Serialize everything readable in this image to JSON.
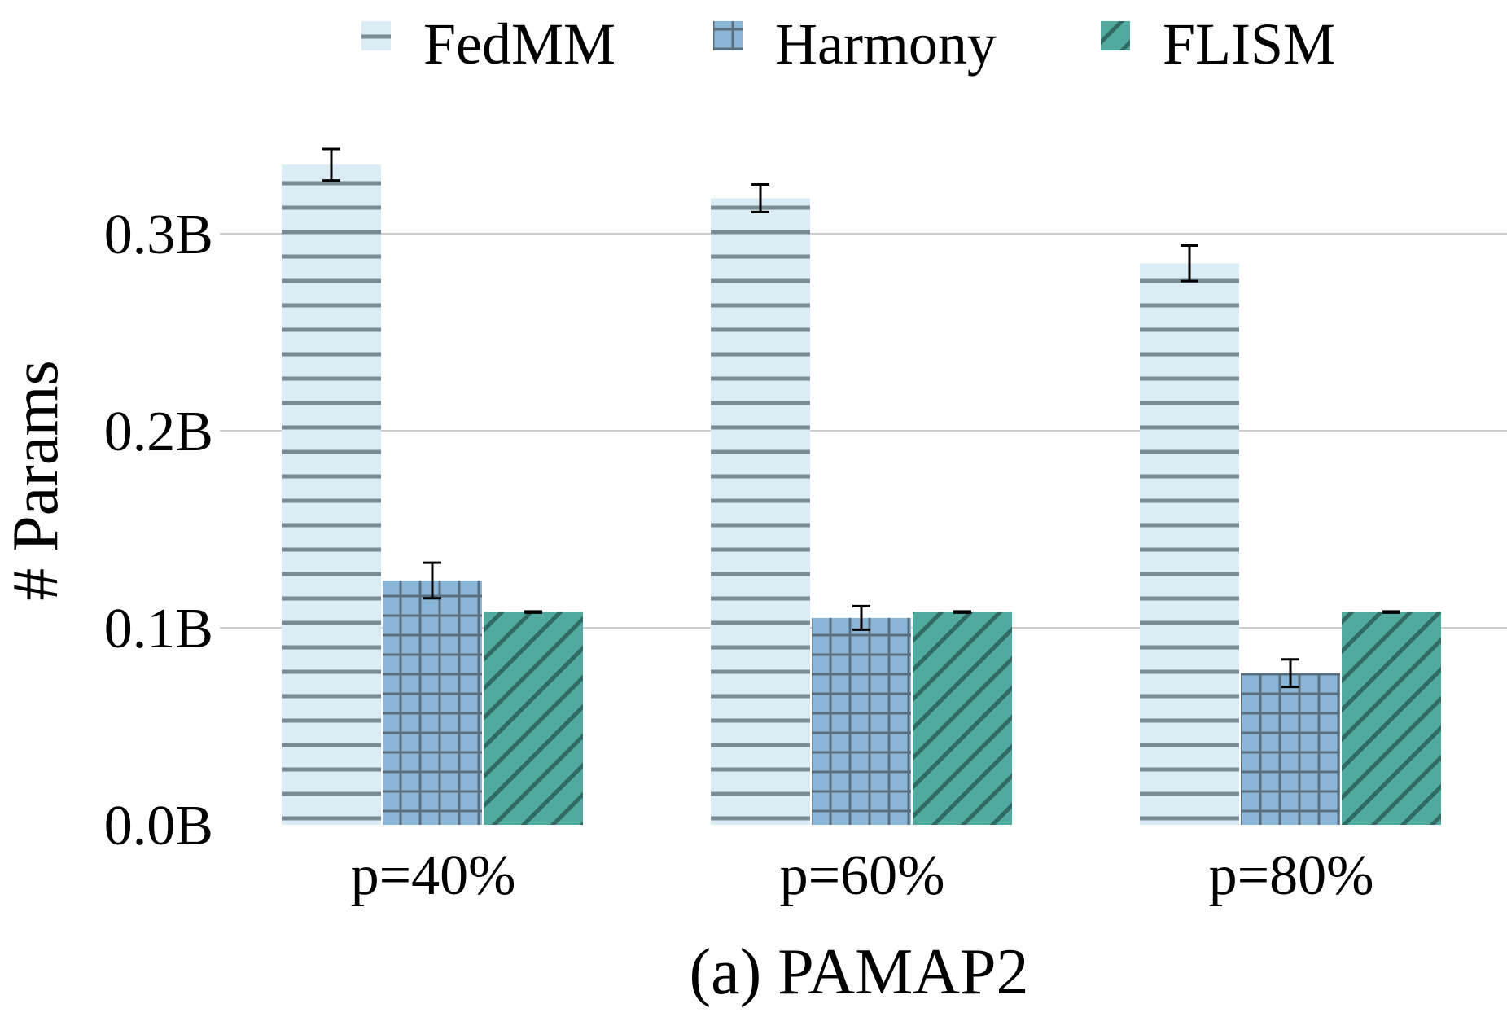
{
  "chart_data": {
    "type": "bar",
    "title": "",
    "xlabel": "(a) PAMAP2",
    "ylabel": "# Params",
    "categories": [
      "p=40%",
      "p=60%",
      "p=80%"
    ],
    "ylim": [
      0,
      0.35
    ],
    "yticks": [
      {
        "value": 0.0,
        "label": "0.0B"
      },
      {
        "value": 0.1,
        "label": "0.1B"
      },
      {
        "value": 0.2,
        "label": "0.2B"
      },
      {
        "value": 0.3,
        "label": "0.3B"
      }
    ],
    "grid": "horizontal",
    "legend_position": "top",
    "unit": "billions of parameters",
    "series": [
      {
        "name": "FedMM",
        "color": "#dcecf4",
        "hatch": "horizontal",
        "hatch_color": "#7a8a92",
        "values": [
          0.335,
          0.318,
          0.285
        ],
        "errors": [
          0.008,
          0.007,
          0.009
        ]
      },
      {
        "name": "Harmony",
        "color": "#8ab6d8",
        "hatch": "grid",
        "hatch_color": "#5a6e7e",
        "values": [
          0.124,
          0.105,
          0.077
        ],
        "errors": [
          0.009,
          0.006,
          0.007
        ]
      },
      {
        "name": "FLISM",
        "color": "#52aa9e",
        "hatch": "diagonal",
        "hatch_color": "#2f6b63",
        "values": [
          0.108,
          0.108,
          0.108
        ],
        "errors": [
          0.0003,
          0.0003,
          0.0003
        ]
      }
    ]
  }
}
